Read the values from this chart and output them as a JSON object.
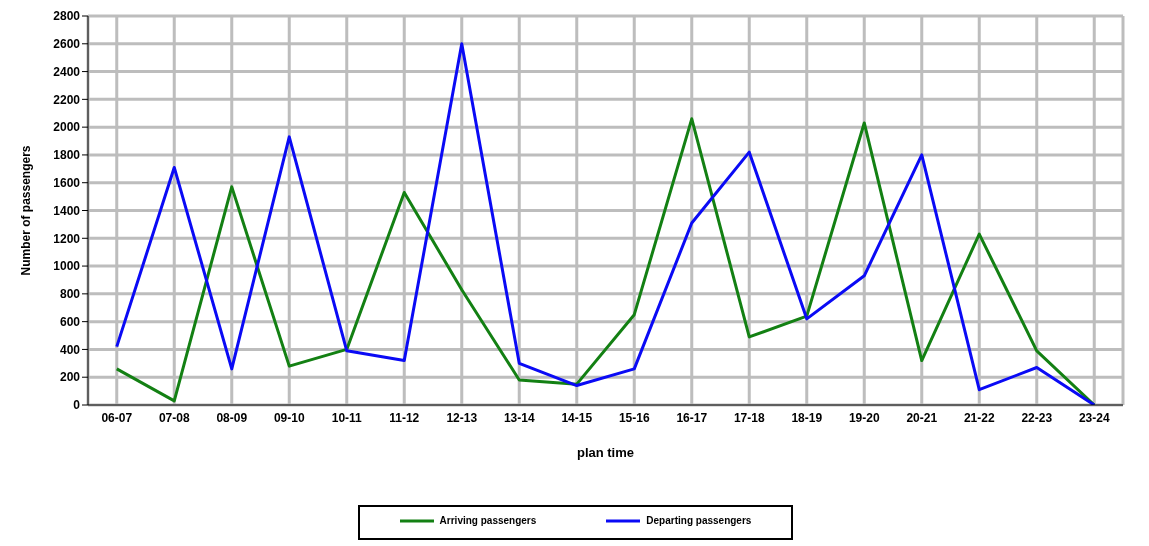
{
  "chart_data": {
    "type": "line",
    "xlabel": "plan time",
    "ylabel": "Number of passengers",
    "categories": [
      "06-07",
      "07-08",
      "08-09",
      "09-10",
      "10-11",
      "11-12",
      "12-13",
      "13-14",
      "14-15",
      "15-16",
      "16-17",
      "17-18",
      "18-19",
      "19-20",
      "20-21",
      "21-22",
      "22-23",
      "23-24"
    ],
    "series": [
      {
        "name": "Arriving passengers",
        "color": "#138013",
        "values": [
          260,
          30,
          1570,
          280,
          400,
          1530,
          830,
          180,
          150,
          650,
          2060,
          490,
          640,
          2030,
          320,
          1230,
          390,
          0
        ]
      },
      {
        "name": "Departing passengers",
        "color": "#0a0af5",
        "values": [
          420,
          1710,
          260,
          1930,
          390,
          320,
          2600,
          300,
          140,
          260,
          1310,
          1820,
          620,
          930,
          1800,
          110,
          270,
          0
        ]
      }
    ],
    "ylim": [
      0,
      2800
    ],
    "yticks": [
      0,
      200,
      400,
      600,
      800,
      1000,
      1200,
      1400,
      1600,
      1800,
      2000,
      2200,
      2400,
      2600,
      2800
    ],
    "grid": true,
    "legend": "bottom",
    "marker": "none",
    "line_style": "solid"
  }
}
